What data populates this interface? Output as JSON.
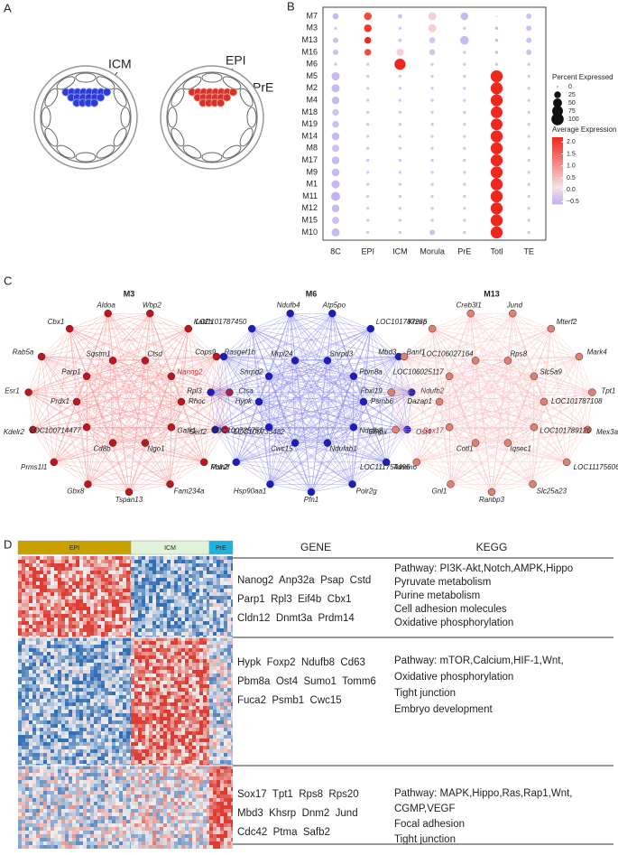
{
  "panels": {
    "a": "A",
    "b": "B",
    "c": "C",
    "d": "D"
  },
  "embryo": {
    "icm": "ICM",
    "epi": "EPI",
    "pre": "PrE"
  },
  "chart_data": {
    "type": "dot",
    "rows": [
      "M7",
      "M3",
      "M13",
      "M16",
      "M6",
      "M5",
      "M2",
      "M4",
      "M18",
      "M19",
      "M14",
      "M8",
      "M17",
      "M9",
      "M1",
      "M11",
      "M12",
      "M15",
      "M10"
    ],
    "columns": [
      "8C",
      "EPI",
      "ICM",
      "Morula",
      "PrE",
      "Totl",
      "TE"
    ],
    "percent": [
      [
        20,
        35,
        10,
        40,
        35,
        0,
        15
      ],
      [
        3,
        35,
        3,
        40,
        3,
        3,
        15
      ],
      [
        15,
        25,
        5,
        20,
        45,
        3,
        15
      ],
      [
        15,
        25,
        30,
        20,
        3,
        3,
        15
      ],
      [
        3,
        3,
        80,
        3,
        3,
        3,
        3
      ],
      [
        40,
        3,
        3,
        3,
        3,
        95,
        3
      ],
      [
        40,
        3,
        3,
        3,
        3,
        95,
        3
      ],
      [
        35,
        3,
        3,
        3,
        3,
        95,
        3
      ],
      [
        25,
        3,
        3,
        3,
        3,
        90,
        3
      ],
      [
        25,
        3,
        3,
        3,
        3,
        90,
        3
      ],
      [
        35,
        3,
        3,
        3,
        3,
        95,
        3
      ],
      [
        30,
        3,
        3,
        3,
        3,
        95,
        3
      ],
      [
        35,
        3,
        3,
        3,
        3,
        95,
        3
      ],
      [
        35,
        3,
        3,
        3,
        3,
        95,
        3
      ],
      [
        40,
        3,
        3,
        3,
        3,
        95,
        3
      ],
      [
        50,
        3,
        3,
        3,
        3,
        95,
        3
      ],
      [
        35,
        3,
        3,
        3,
        3,
        95,
        3
      ],
      [
        30,
        3,
        3,
        3,
        3,
        95,
        3
      ],
      [
        40,
        3,
        3,
        15,
        3,
        95,
        3
      ]
    ],
    "average": [
      [
        -0.5,
        1.8,
        -0.4,
        0.3,
        -0.5,
        -0.6,
        -0.4
      ],
      [
        -0.3,
        2.0,
        -0.3,
        0.3,
        -0.3,
        -0.5,
        -0.4
      ],
      [
        -0.4,
        2.2,
        -0.3,
        -0.3,
        -0.5,
        -0.5,
        -0.4
      ],
      [
        -0.4,
        1.8,
        0.3,
        -0.3,
        -0.3,
        -0.5,
        -0.4
      ],
      [
        -0.3,
        -0.3,
        2.2,
        -0.3,
        -0.3,
        -0.3,
        -0.3
      ],
      [
        -0.5,
        -0.3,
        -0.3,
        -0.3,
        -0.3,
        2.2,
        -0.3
      ],
      [
        -0.5,
        -0.3,
        -0.3,
        -0.3,
        -0.3,
        2.2,
        -0.3
      ],
      [
        -0.5,
        -0.3,
        -0.3,
        -0.3,
        -0.3,
        2.2,
        -0.3
      ],
      [
        -0.4,
        -0.3,
        -0.3,
        -0.3,
        -0.3,
        2.2,
        -0.3
      ],
      [
        -0.4,
        -0.3,
        -0.3,
        -0.3,
        -0.3,
        2.2,
        -0.3
      ],
      [
        -0.5,
        -0.3,
        -0.3,
        -0.3,
        -0.3,
        2.2,
        -0.3
      ],
      [
        -0.4,
        -0.3,
        -0.3,
        -0.3,
        -0.3,
        2.2,
        -0.3
      ],
      [
        -0.5,
        -0.3,
        -0.3,
        -0.3,
        -0.3,
        2.2,
        -0.3
      ],
      [
        -0.5,
        -0.3,
        -0.3,
        -0.3,
        -0.3,
        2.2,
        -0.3
      ],
      [
        -0.5,
        -0.3,
        -0.3,
        -0.3,
        -0.3,
        2.2,
        -0.3
      ],
      [
        -0.6,
        -0.3,
        -0.3,
        -0.3,
        -0.3,
        2.2,
        -0.3
      ],
      [
        -0.5,
        -0.3,
        -0.3,
        -0.3,
        -0.3,
        2.2,
        -0.3
      ],
      [
        -0.4,
        -0.3,
        -0.3,
        -0.3,
        -0.3,
        2.2,
        -0.3
      ],
      [
        -0.5,
        -0.3,
        -0.3,
        -0.4,
        -0.3,
        2.2,
        -0.3
      ]
    ],
    "size_legend": {
      "title": "Percent Expressed",
      "ticks": [
        0,
        25,
        50,
        75,
        100
      ]
    },
    "color_legend": {
      "title": "Average Expression",
      "lim": [
        -0.6,
        2.2
      ],
      "ticks": [
        {
          "value": 2,
          "label": "2.0"
        },
        1.5,
        {
          "value": 1,
          "label": "1.0"
        },
        0.5,
        {
          "value": 0,
          "label": "0.0"
        },
        {
          "value": -0.5,
          "label": "−0.5"
        }
      ]
    }
  },
  "networks": [
    {
      "title": "M3",
      "outer": [
        "Wbp2",
        "Kat2b",
        "Rasgef1b",
        "Ctsa",
        "LOC100733482",
        "Msh2",
        "Fam234a",
        "Tspan13",
        "Gbx8",
        "Prms1l1",
        "Kdelr2",
        "Esr1",
        "Rab5a",
        "Cbx1",
        "Aldoa"
      ],
      "inner": [
        "Ctsd",
        "Nanog2",
        "Rhoc",
        "Galk1",
        "Ngo1",
        "Cd8b",
        "LOC100714477",
        "Prdx1",
        "Parp1",
        "Sqstm1"
      ],
      "highlight": "Nanog2"
    },
    {
      "title": "M6",
      "outer": [
        "Atp5po",
        "LOC101787265",
        "Banf1",
        "Ndufb2",
        "Ost4",
        "Tomm6",
        "Polr2g",
        "Pfn1",
        "Hsp90aa1",
        "Polr2f",
        "Serf2",
        "Rpl3",
        "Cops9",
        "LOC101787450",
        "Ndufb4"
      ],
      "inner": [
        "Snrpd3",
        "Pbm8a",
        "Psmb6",
        "Ndufb8",
        "Ndufab1",
        "Cwc15",
        "LOC100735751",
        "Hypk",
        "Snrpd2",
        "Mrpl24"
      ]
    },
    {
      "title": "M13",
      "outer": [
        "Jund",
        "Mterf2",
        "Mark4",
        "Tpt1",
        "Mex3a",
        "LOC111756064",
        "Slc25a23",
        "Ranbp3",
        "Gnl1",
        "LOC111754495",
        "Smpx",
        "Fbxl19",
        "Mbd3",
        "Khsrp",
        "Creb3l1"
      ],
      "inner": [
        "Rps8",
        "Slc5a9",
        "LOC101787108",
        "LOC101789126",
        "Iqsec1",
        "Cotl1",
        "Sox17",
        "Dazap1",
        "LOC106025117",
        "LOC106027164"
      ],
      "highlight": "Sox17"
    }
  ],
  "heatmap": {
    "groups": [
      "EPI",
      "ICM",
      "PrE"
    ]
  },
  "table": {
    "headers": [
      "GENE",
      "KEGG"
    ],
    "rows": [
      {
        "genes": [
          "Nanog2  Anp32a  Psap  Cstd",
          "Parp1  Rpl3  Eif4b  Cbx1",
          "Cldn12  Dnmt3a  Prdm14"
        ],
        "kegg": [
          "Pathway: PI3K-Akt,Notch,AMPK,Hippo",
          "Pyruvate metabolism",
          "Purine metabolism",
          "Cell adhesion molecules",
          "Oxidative phosphorylation"
        ]
      },
      {
        "genes": [
          "Hypk  Foxp2  Ndufb8  Cd63",
          "Pbm8a  Ost4  Sumo1  Tomm6",
          "Fuca2  Psmb1  Cwc15"
        ],
        "kegg": [
          "Pathway: mTOR,Calcium,HIF-1,Wnt,",
          "Oxidative phosphorylation",
          "Tight junction",
          "Embryo development"
        ]
      },
      {
        "genes": [
          "Sox17  Tpt1  Rps8  Rps20",
          "Mbd3  Khsrp  Dnm2  Jund",
          "Cdc42  Ptma  Safb2"
        ],
        "kegg": [
          "Pathway: MAPK,Hippo,Ras,Rap1,Wnt,",
          "CGMP,VEGF",
          "Focal adhesion",
          "Tight junction"
        ]
      }
    ]
  }
}
